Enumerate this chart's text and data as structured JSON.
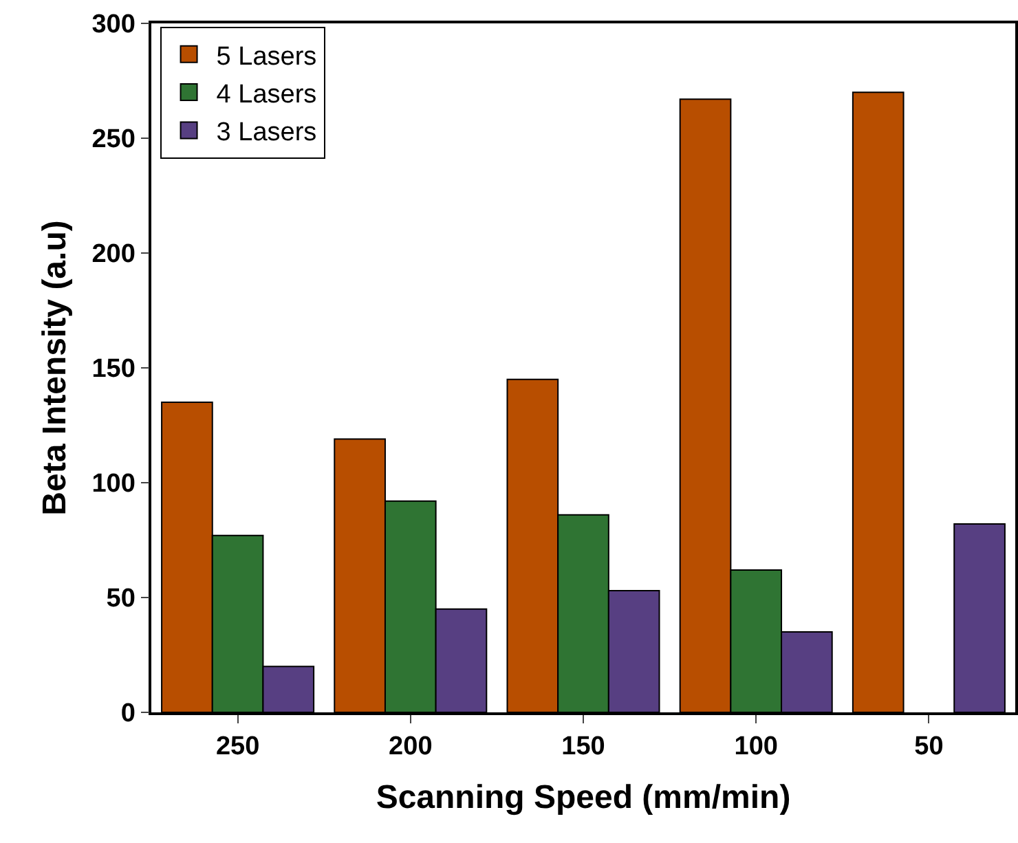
{
  "chart_data": {
    "type": "bar",
    "xlabel": "Scanning Speed (mm/min)",
    "ylabel": "Beta Intensity (a.u)",
    "categories": [
      "250",
      "200",
      "150",
      "100",
      "50"
    ],
    "series": [
      {
        "name": "5 Lasers",
        "color": "#b84e00",
        "values": [
          135,
          119,
          145,
          267,
          270
        ]
      },
      {
        "name": "4 Lasers",
        "color": "#2f7433",
        "values": [
          77,
          92,
          86,
          62,
          null
        ]
      },
      {
        "name": "3 Lasers",
        "color": "#573f82",
        "values": [
          20,
          45,
          53,
          35,
          82
        ]
      }
    ],
    "ylim": [
      0,
      300
    ],
    "yticks": [
      0,
      50,
      100,
      150,
      200,
      250,
      300
    ],
    "grid": false,
    "legend": "top left"
  }
}
